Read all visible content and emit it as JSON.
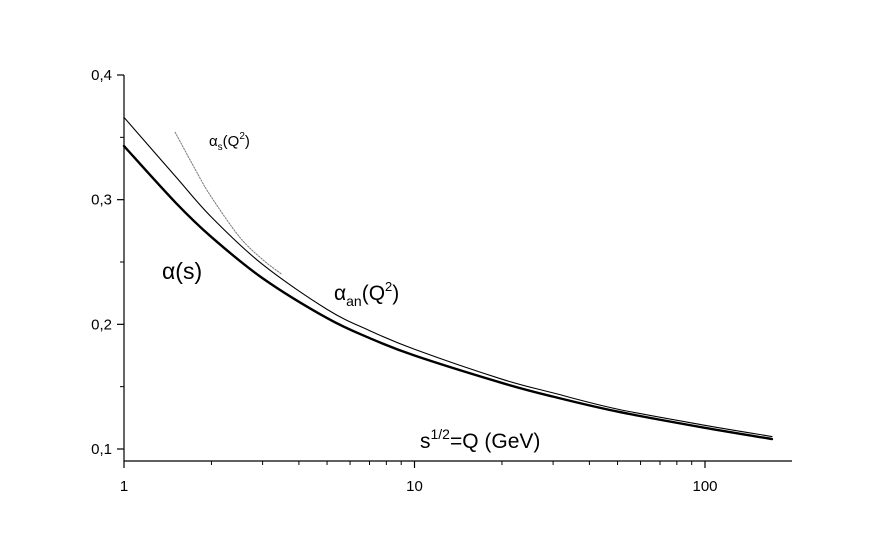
{
  "chart_data": {
    "type": "line",
    "title": "",
    "xlabel": "s^{1/2}=Q (GeV)",
    "ylabel": "",
    "x_scale": "log",
    "xlim": [
      1,
      200
    ],
    "ylim": [
      0.09,
      0.4
    ],
    "x_ticks": [
      1,
      10,
      100
    ],
    "x_tick_labels": [
      "1",
      "10",
      "100"
    ],
    "y_ticks": [
      0.1,
      0.2,
      0.3,
      0.4
    ],
    "y_tick_labels": [
      "0,1",
      "0,2",
      "0,3",
      "0,4"
    ],
    "grid": false,
    "legend": "none",
    "series": [
      {
        "style": "thick",
        "color": "#000000",
        "x": [
          1,
          1.5,
          2,
          3,
          5,
          7,
          10,
          20,
          30,
          50,
          100,
          170
        ],
        "y": [
          0.343,
          0.298,
          0.27,
          0.237,
          0.205,
          0.189,
          0.175,
          0.153,
          0.142,
          0.13,
          0.117,
          0.108
        ]
      },
      {
        "style": "thin",
        "color": "#000000",
        "x": [
          1,
          1.5,
          2,
          3,
          5,
          7,
          10,
          20,
          30,
          50,
          100,
          170
        ],
        "y": [
          0.366,
          0.319,
          0.286,
          0.248,
          0.212,
          0.195,
          0.18,
          0.156,
          0.145,
          0.132,
          0.119,
          0.11
        ]
      },
      {
        "style": "dotted",
        "color": "#777777",
        "x": [
          1.5,
          1.8,
          2,
          2.5,
          3,
          3.5
        ],
        "y": [
          0.354,
          0.32,
          0.302,
          0.27,
          0.252,
          0.24
        ]
      }
    ],
    "annotations": [
      {
        "main": "α",
        "sub": "s",
        "rest": "(Q",
        "sup": "2",
        "end": ")"
      },
      {
        "main": "α(s)"
      },
      {
        "main": "α",
        "sub": "an",
        "rest": "(Q",
        "sup": "2",
        "end": ")"
      },
      {
        "main": "s",
        "sup": "1/2",
        "rest": "=Q (GeV)"
      }
    ]
  }
}
